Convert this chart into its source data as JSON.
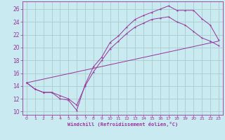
{
  "background_color": "#c8eaf0",
  "grid_color": "#aacccc",
  "line_color": "#993399",
  "marker": "*",
  "xlabel": "Windchill (Refroidissement éolien,°C)",
  "ylabel_ticks": [
    10,
    12,
    14,
    16,
    18,
    20,
    22,
    24,
    26
  ],
  "xlabel_ticks": [
    0,
    1,
    2,
    3,
    4,
    5,
    6,
    7,
    8,
    9,
    10,
    11,
    12,
    13,
    14,
    15,
    16,
    17,
    18,
    19,
    20,
    21,
    22,
    23
  ],
  "xlim": [
    -0.5,
    23.5
  ],
  "ylim": [
    9.5,
    27.2
  ],
  "series": [
    {
      "x": [
        0,
        1,
        2,
        3,
        4,
        5,
        6,
        7,
        8,
        9,
        10,
        11,
        12,
        13,
        14,
        15,
        16,
        17,
        18,
        19,
        20,
        21,
        22,
        23
      ],
      "y": [
        14.5,
        13.5,
        13.0,
        13.0,
        12.0,
        11.8,
        10.2,
        14.2,
        17.0,
        18.5,
        20.8,
        21.8,
        23.2,
        24.4,
        25.0,
        25.5,
        26.0,
        26.5,
        25.8,
        25.8,
        25.8,
        24.5,
        23.5,
        21.2
      ]
    },
    {
      "x": [
        0,
        1,
        2,
        3,
        4,
        5,
        6,
        7,
        8,
        9,
        10,
        11,
        12,
        13,
        14,
        15,
        16,
        17,
        18,
        19,
        20,
        21,
        22,
        23
      ],
      "y": [
        14.5,
        13.5,
        13.0,
        13.0,
        12.5,
        12.0,
        11.0,
        14.0,
        16.2,
        18.0,
        19.8,
        21.0,
        22.2,
        23.2,
        23.8,
        24.4,
        24.6,
        24.8,
        24.0,
        23.5,
        22.5,
        21.5,
        21.0,
        20.3
      ]
    },
    {
      "x": [
        0,
        23
      ],
      "y": [
        14.5,
        21.0
      ]
    }
  ]
}
